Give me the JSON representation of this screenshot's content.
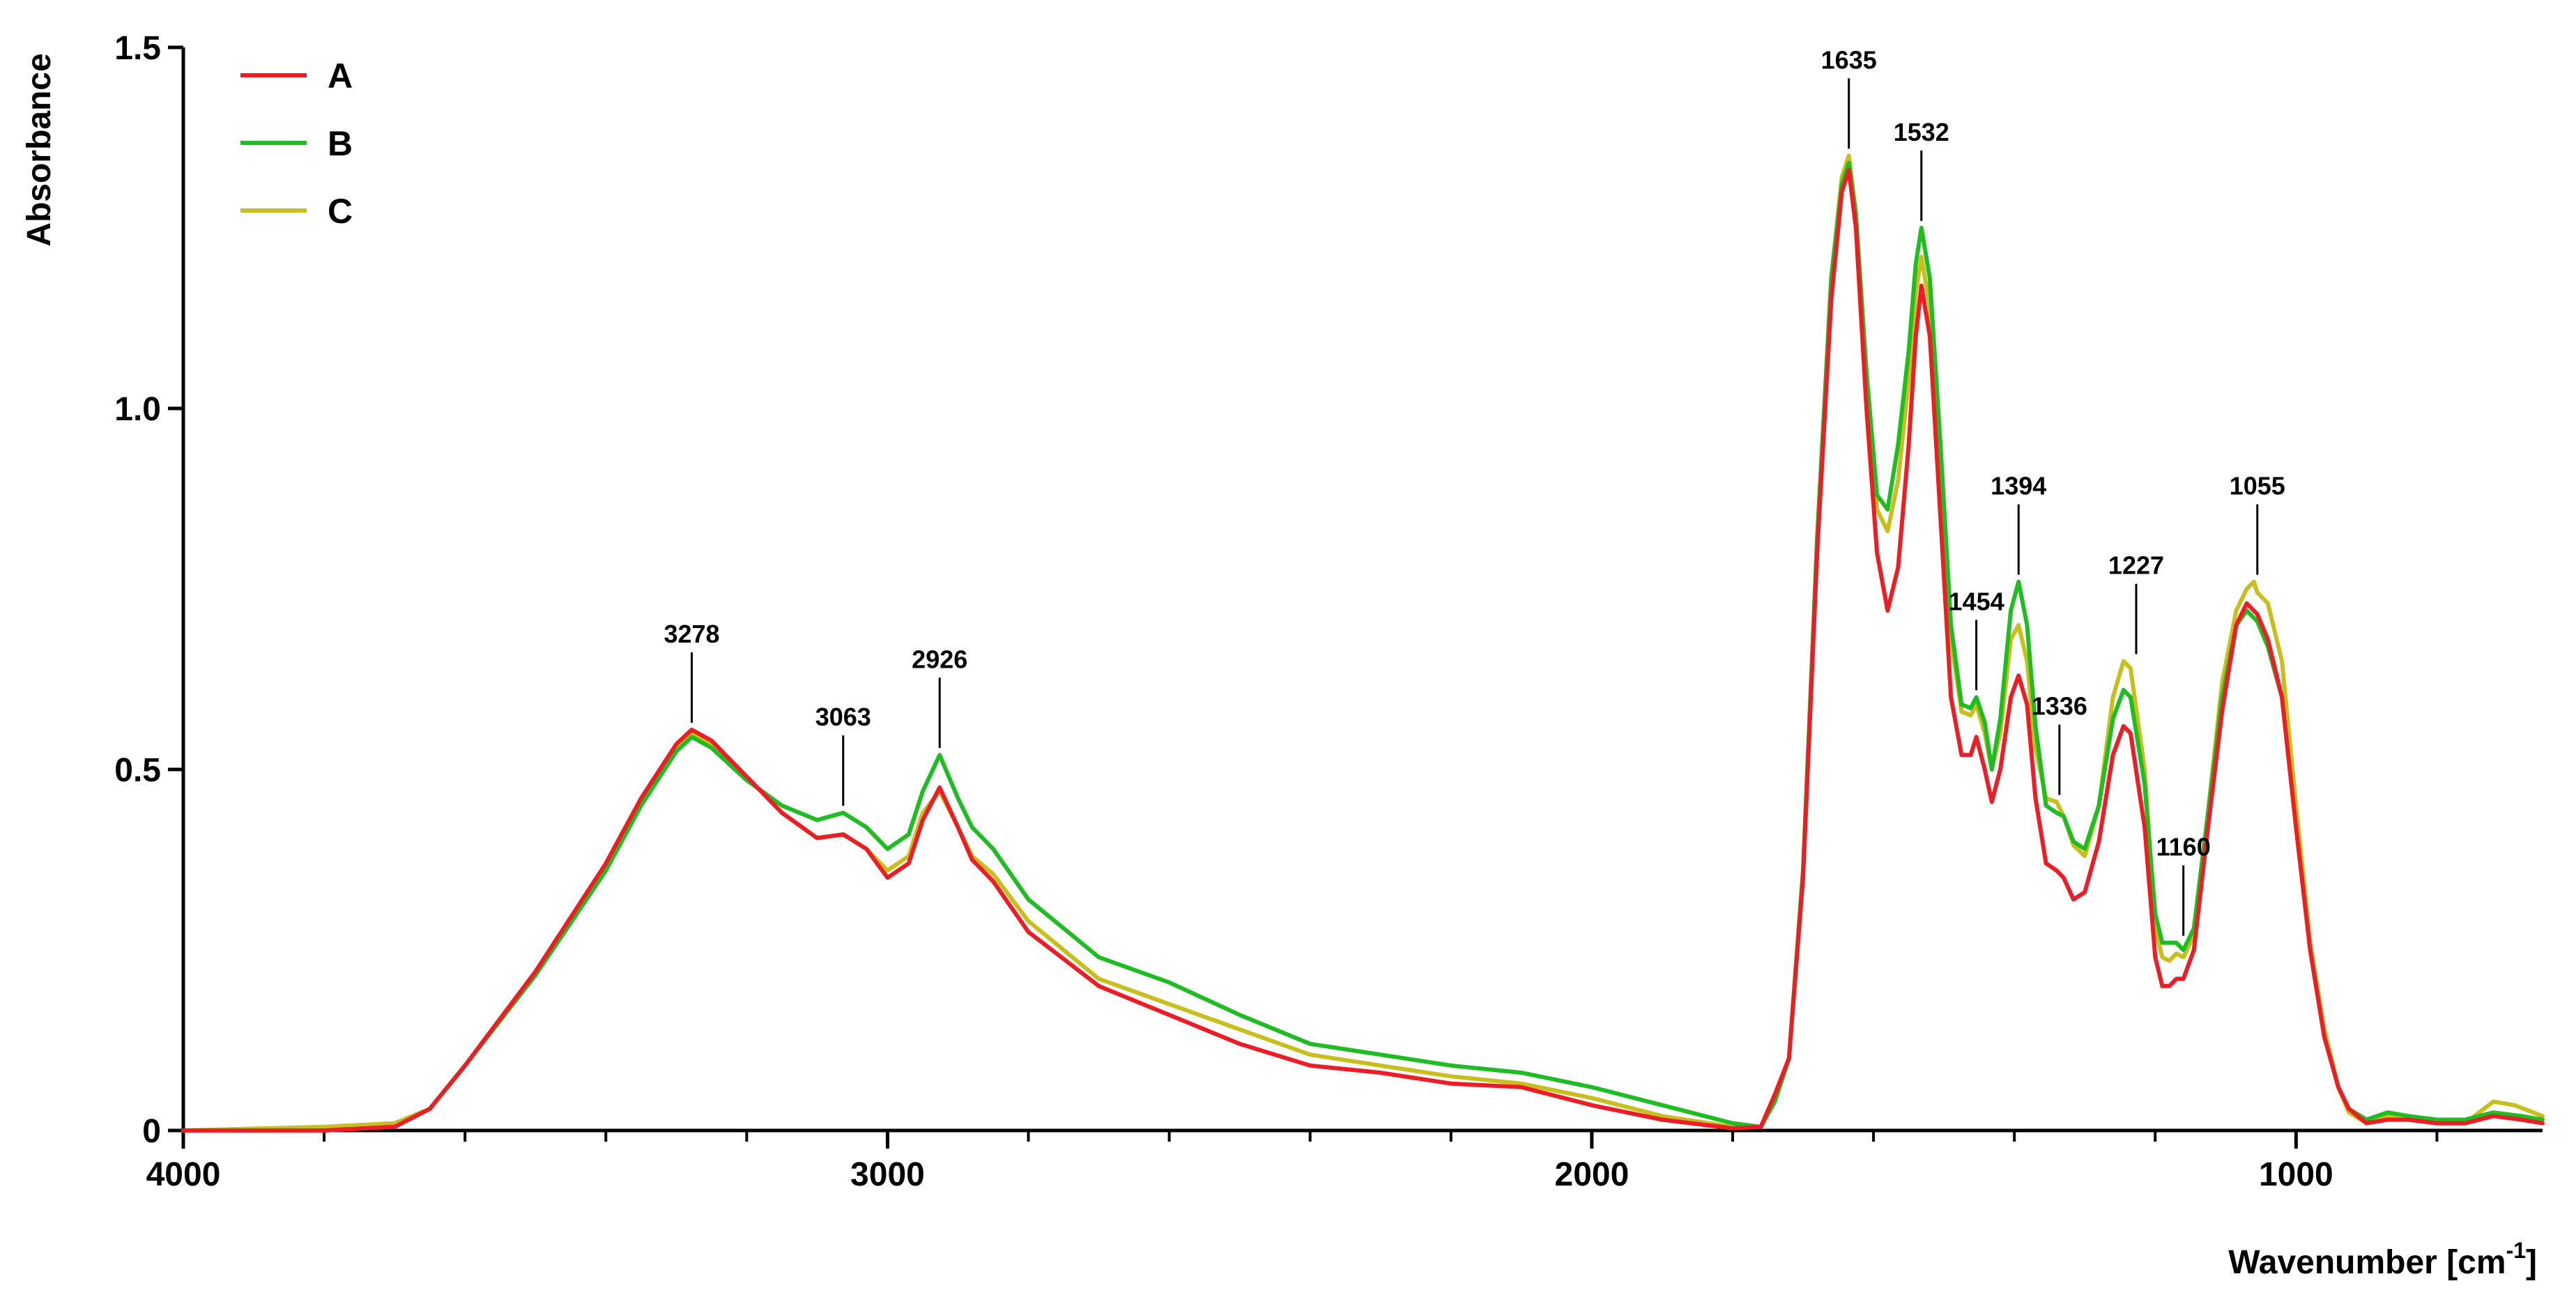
{
  "chart_data": {
    "type": "line",
    "xlabel": "Wavenumber [cm",
    "xlabel_sup": "-1",
    "xlabel_close": "]",
    "ylabel": "Absorbance",
    "xlim": [
      4000,
      650
    ],
    "ylim": [
      0,
      1.5
    ],
    "x_reversed": true,
    "grid": false,
    "legend_position": "top-left",
    "x_ticks": [
      {
        "value": 4000,
        "label": "4000"
      },
      {
        "value": 3000,
        "label": "3000"
      },
      {
        "value": 2000,
        "label": "2000"
      },
      {
        "value": 1000,
        "label": "1000"
      }
    ],
    "y_ticks": [
      {
        "value": 0,
        "label": "0"
      },
      {
        "value": 0.5,
        "label": "0.5"
      },
      {
        "value": 1.0,
        "label": "1.0"
      },
      {
        "value": 1.5,
        "label": "1.5"
      }
    ],
    "series": [
      {
        "name": "A",
        "color": "#ee1c25",
        "points": [
          [
            4000,
            0.0
          ],
          [
            3800,
            0.0
          ],
          [
            3700,
            0.005
          ],
          [
            3650,
            0.03
          ],
          [
            3600,
            0.09
          ],
          [
            3500,
            0.22
          ],
          [
            3400,
            0.37
          ],
          [
            3350,
            0.46
          ],
          [
            3300,
            0.535
          ],
          [
            3278,
            0.555
          ],
          [
            3250,
            0.54
          ],
          [
            3200,
            0.49
          ],
          [
            3150,
            0.44
          ],
          [
            3100,
            0.405
          ],
          [
            3063,
            0.41
          ],
          [
            3030,
            0.39
          ],
          [
            3000,
            0.35
          ],
          [
            2970,
            0.37
          ],
          [
            2950,
            0.43
          ],
          [
            2926,
            0.475
          ],
          [
            2900,
            0.42
          ],
          [
            2880,
            0.375
          ],
          [
            2850,
            0.345
          ],
          [
            2800,
            0.275
          ],
          [
            2700,
            0.2
          ],
          [
            2600,
            0.16
          ],
          [
            2500,
            0.12
          ],
          [
            2400,
            0.09
          ],
          [
            2300,
            0.08
          ],
          [
            2200,
            0.065
          ],
          [
            2100,
            0.06
          ],
          [
            2000,
            0.035
          ],
          [
            1900,
            0.015
          ],
          [
            1800,
            0.003
          ],
          [
            1760,
            0.005
          ],
          [
            1740,
            0.05
          ],
          [
            1720,
            0.1
          ],
          [
            1700,
            0.35
          ],
          [
            1680,
            0.8
          ],
          [
            1660,
            1.15
          ],
          [
            1645,
            1.3
          ],
          [
            1635,
            1.33
          ],
          [
            1625,
            1.25
          ],
          [
            1610,
            1.0
          ],
          [
            1595,
            0.8
          ],
          [
            1580,
            0.72
          ],
          [
            1565,
            0.78
          ],
          [
            1550,
            0.95
          ],
          [
            1540,
            1.1
          ],
          [
            1532,
            1.17
          ],
          [
            1520,
            1.1
          ],
          [
            1505,
            0.85
          ],
          [
            1490,
            0.6
          ],
          [
            1475,
            0.52
          ],
          [
            1462,
            0.52
          ],
          [
            1454,
            0.545
          ],
          [
            1442,
            0.5
          ],
          [
            1432,
            0.455
          ],
          [
            1420,
            0.5
          ],
          [
            1405,
            0.6
          ],
          [
            1394,
            0.63
          ],
          [
            1382,
            0.59
          ],
          [
            1370,
            0.46
          ],
          [
            1355,
            0.37
          ],
          [
            1340,
            0.36
          ],
          [
            1330,
            0.35
          ],
          [
            1316,
            0.32
          ],
          [
            1300,
            0.33
          ],
          [
            1280,
            0.4
          ],
          [
            1260,
            0.52
          ],
          [
            1245,
            0.56
          ],
          [
            1235,
            0.55
          ],
          [
            1215,
            0.42
          ],
          [
            1200,
            0.24
          ],
          [
            1190,
            0.2
          ],
          [
            1180,
            0.2
          ],
          [
            1170,
            0.21
          ],
          [
            1160,
            0.21
          ],
          [
            1145,
            0.25
          ],
          [
            1125,
            0.42
          ],
          [
            1105,
            0.58
          ],
          [
            1085,
            0.7
          ],
          [
            1070,
            0.73
          ],
          [
            1055,
            0.715
          ],
          [
            1040,
            0.68
          ],
          [
            1020,
            0.6
          ],
          [
            1000,
            0.42
          ],
          [
            980,
            0.25
          ],
          [
            960,
            0.13
          ],
          [
            940,
            0.06
          ],
          [
            925,
            0.03
          ],
          [
            900,
            0.01
          ],
          [
            870,
            0.015
          ],
          [
            840,
            0.015
          ],
          [
            800,
            0.01
          ],
          [
            760,
            0.01
          ],
          [
            720,
            0.02
          ],
          [
            680,
            0.015
          ],
          [
            650,
            0.01
          ]
        ]
      },
      {
        "name": "B",
        "color": "#1ebd22",
        "points": [
          [
            4000,
            0.0
          ],
          [
            3800,
            0.0
          ],
          [
            3700,
            0.005
          ],
          [
            3650,
            0.03
          ],
          [
            3600,
            0.09
          ],
          [
            3500,
            0.215
          ],
          [
            3400,
            0.36
          ],
          [
            3350,
            0.45
          ],
          [
            3300,
            0.525
          ],
          [
            3278,
            0.545
          ],
          [
            3250,
            0.53
          ],
          [
            3200,
            0.485
          ],
          [
            3150,
            0.45
          ],
          [
            3100,
            0.43
          ],
          [
            3063,
            0.44
          ],
          [
            3030,
            0.42
          ],
          [
            3000,
            0.39
          ],
          [
            2970,
            0.41
          ],
          [
            2950,
            0.47
          ],
          [
            2926,
            0.52
          ],
          [
            2900,
            0.46
          ],
          [
            2880,
            0.42
          ],
          [
            2850,
            0.39
          ],
          [
            2800,
            0.32
          ],
          [
            2700,
            0.24
          ],
          [
            2600,
            0.205
          ],
          [
            2500,
            0.16
          ],
          [
            2400,
            0.12
          ],
          [
            2300,
            0.105
          ],
          [
            2200,
            0.09
          ],
          [
            2100,
            0.08
          ],
          [
            2000,
            0.06
          ],
          [
            1900,
            0.035
          ],
          [
            1800,
            0.01
          ],
          [
            1760,
            0.005
          ],
          [
            1740,
            0.04
          ],
          [
            1720,
            0.1
          ],
          [
            1700,
            0.36
          ],
          [
            1680,
            0.82
          ],
          [
            1660,
            1.18
          ],
          [
            1645,
            1.31
          ],
          [
            1635,
            1.34
          ],
          [
            1625,
            1.27
          ],
          [
            1610,
            1.05
          ],
          [
            1595,
            0.88
          ],
          [
            1580,
            0.86
          ],
          [
            1565,
            0.95
          ],
          [
            1550,
            1.08
          ],
          [
            1540,
            1.2
          ],
          [
            1532,
            1.25
          ],
          [
            1520,
            1.18
          ],
          [
            1505,
            0.95
          ],
          [
            1490,
            0.7
          ],
          [
            1475,
            0.59
          ],
          [
            1462,
            0.585
          ],
          [
            1454,
            0.6
          ],
          [
            1442,
            0.565
          ],
          [
            1432,
            0.5
          ],
          [
            1420,
            0.57
          ],
          [
            1405,
            0.72
          ],
          [
            1394,
            0.76
          ],
          [
            1382,
            0.7
          ],
          [
            1370,
            0.56
          ],
          [
            1355,
            0.45
          ],
          [
            1340,
            0.44
          ],
          [
            1330,
            0.435
          ],
          [
            1316,
            0.4
          ],
          [
            1300,
            0.39
          ],
          [
            1280,
            0.45
          ],
          [
            1260,
            0.57
          ],
          [
            1245,
            0.61
          ],
          [
            1235,
            0.6
          ],
          [
            1215,
            0.48
          ],
          [
            1200,
            0.3
          ],
          [
            1190,
            0.26
          ],
          [
            1180,
            0.26
          ],
          [
            1170,
            0.26
          ],
          [
            1160,
            0.25
          ],
          [
            1145,
            0.28
          ],
          [
            1125,
            0.44
          ],
          [
            1105,
            0.6
          ],
          [
            1085,
            0.7
          ],
          [
            1070,
            0.72
          ],
          [
            1055,
            0.705
          ],
          [
            1040,
            0.67
          ],
          [
            1020,
            0.6
          ],
          [
            1000,
            0.42
          ],
          [
            980,
            0.25
          ],
          [
            960,
            0.13
          ],
          [
            940,
            0.06
          ],
          [
            925,
            0.03
          ],
          [
            900,
            0.015
          ],
          [
            870,
            0.025
          ],
          [
            840,
            0.02
          ],
          [
            800,
            0.015
          ],
          [
            760,
            0.015
          ],
          [
            720,
            0.025
          ],
          [
            680,
            0.02
          ],
          [
            650,
            0.015
          ]
        ]
      },
      {
        "name": "C",
        "color": "#c8bf1c",
        "points": [
          [
            4000,
            0.0
          ],
          [
            3800,
            0.005
          ],
          [
            3700,
            0.01
          ],
          [
            3650,
            0.03
          ],
          [
            3600,
            0.09
          ],
          [
            3500,
            0.22
          ],
          [
            3400,
            0.365
          ],
          [
            3350,
            0.455
          ],
          [
            3300,
            0.53
          ],
          [
            3278,
            0.55
          ],
          [
            3250,
            0.535
          ],
          [
            3200,
            0.49
          ],
          [
            3150,
            0.44
          ],
          [
            3100,
            0.405
          ],
          [
            3063,
            0.41
          ],
          [
            3030,
            0.39
          ],
          [
            3000,
            0.36
          ],
          [
            2970,
            0.38
          ],
          [
            2950,
            0.44
          ],
          [
            2926,
            0.47
          ],
          [
            2900,
            0.42
          ],
          [
            2880,
            0.38
          ],
          [
            2850,
            0.355
          ],
          [
            2800,
            0.29
          ],
          [
            2700,
            0.21
          ],
          [
            2600,
            0.175
          ],
          [
            2500,
            0.14
          ],
          [
            2400,
            0.105
          ],
          [
            2300,
            0.09
          ],
          [
            2200,
            0.075
          ],
          [
            2100,
            0.065
          ],
          [
            2000,
            0.045
          ],
          [
            1900,
            0.02
          ],
          [
            1800,
            0.005
          ],
          [
            1760,
            0.005
          ],
          [
            1740,
            0.05
          ],
          [
            1720,
            0.1
          ],
          [
            1700,
            0.36
          ],
          [
            1680,
            0.82
          ],
          [
            1660,
            1.18
          ],
          [
            1645,
            1.32
          ],
          [
            1635,
            1.35
          ],
          [
            1625,
            1.27
          ],
          [
            1610,
            1.03
          ],
          [
            1595,
            0.86
          ],
          [
            1580,
            0.83
          ],
          [
            1565,
            0.9
          ],
          [
            1550,
            1.04
          ],
          [
            1540,
            1.16
          ],
          [
            1532,
            1.21
          ],
          [
            1520,
            1.14
          ],
          [
            1505,
            0.92
          ],
          [
            1490,
            0.68
          ],
          [
            1475,
            0.58
          ],
          [
            1462,
            0.575
          ],
          [
            1454,
            0.59
          ],
          [
            1442,
            0.55
          ],
          [
            1432,
            0.5
          ],
          [
            1420,
            0.55
          ],
          [
            1405,
            0.68
          ],
          [
            1394,
            0.7
          ],
          [
            1382,
            0.65
          ],
          [
            1370,
            0.53
          ],
          [
            1355,
            0.46
          ],
          [
            1340,
            0.455
          ],
          [
            1330,
            0.435
          ],
          [
            1316,
            0.395
          ],
          [
            1300,
            0.38
          ],
          [
            1280,
            0.45
          ],
          [
            1260,
            0.6
          ],
          [
            1245,
            0.65
          ],
          [
            1235,
            0.64
          ],
          [
            1215,
            0.5
          ],
          [
            1200,
            0.28
          ],
          [
            1190,
            0.24
          ],
          [
            1180,
            0.235
          ],
          [
            1170,
            0.245
          ],
          [
            1160,
            0.24
          ],
          [
            1145,
            0.27
          ],
          [
            1125,
            0.44
          ],
          [
            1105,
            0.62
          ],
          [
            1085,
            0.72
          ],
          [
            1070,
            0.75
          ],
          [
            1060,
            0.76
          ],
          [
            1055,
            0.745
          ],
          [
            1040,
            0.73
          ],
          [
            1020,
            0.65
          ],
          [
            1000,
            0.45
          ],
          [
            980,
            0.26
          ],
          [
            960,
            0.14
          ],
          [
            940,
            0.06
          ],
          [
            925,
            0.025
          ],
          [
            900,
            0.01
          ],
          [
            870,
            0.02
          ],
          [
            840,
            0.015
          ],
          [
            800,
            0.01
          ],
          [
            760,
            0.01
          ],
          [
            720,
            0.04
          ],
          [
            690,
            0.035
          ],
          [
            650,
            0.02
          ]
        ]
      }
    ],
    "annotations": [
      {
        "label": "3278",
        "x": 3278,
        "y": 0.555
      },
      {
        "label": "3063",
        "x": 3063,
        "y": 0.44
      },
      {
        "label": "2926",
        "x": 2926,
        "y": 0.52
      },
      {
        "label": "1635",
        "x": 1635,
        "y": 1.35
      },
      {
        "label": "1532",
        "x": 1532,
        "y": 1.25
      },
      {
        "label": "1454",
        "x": 1454,
        "y": 0.6
      },
      {
        "label": "1394",
        "x": 1394,
        "y": 0.76
      },
      {
        "label": "1336",
        "x": 1336,
        "y": 0.455
      },
      {
        "label": "1227",
        "x": 1227,
        "y": 0.65
      },
      {
        "label": "1160",
        "x": 1160,
        "y": 0.26
      },
      {
        "label": "1055",
        "x": 1055,
        "y": 0.76
      }
    ]
  }
}
